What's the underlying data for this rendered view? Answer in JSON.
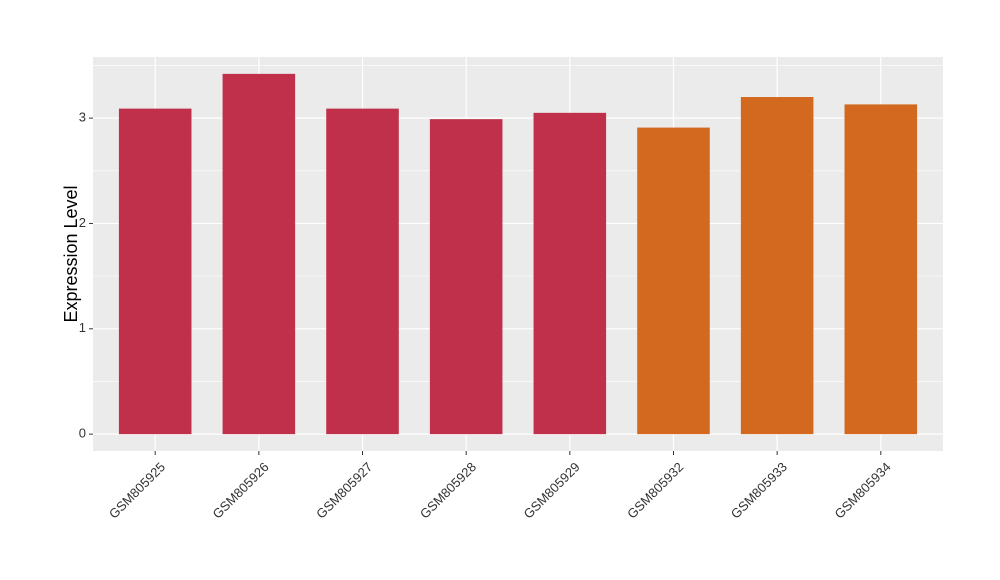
{
  "chart_data": {
    "type": "bar",
    "y_label": "Expression Level",
    "categories": [
      "GSM805925",
      "GSM805926",
      "GSM805927",
      "GSM805928",
      "GSM805929",
      "GSM805932",
      "GSM805933",
      "GSM805934"
    ],
    "values": [
      3.09,
      3.42,
      3.09,
      2.99,
      3.05,
      2.91,
      3.2,
      3.13
    ],
    "colors": [
      "#c0304a",
      "#c0304a",
      "#c0304a",
      "#c0304a",
      "#c0304a",
      "#d2691f",
      "#d2691f",
      "#d2691f"
    ],
    "ylim": [
      -0.16,
      3.58
    ],
    "yticks": [
      0,
      1,
      2,
      3
    ],
    "grid": true
  }
}
